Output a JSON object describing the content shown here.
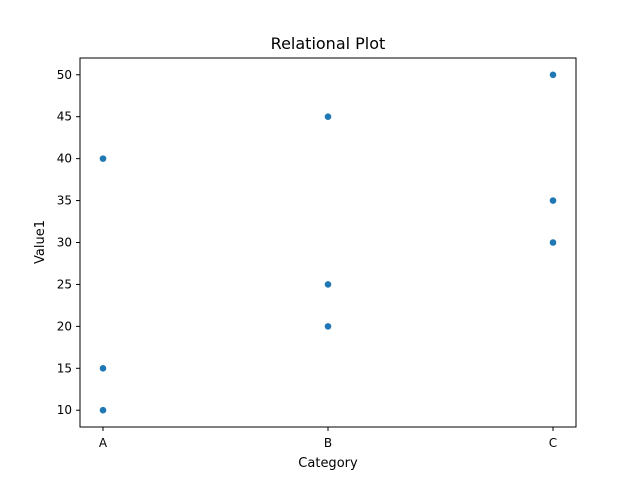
{
  "chart_data": {
    "type": "scatter",
    "title": "Relational Plot",
    "xlabel": "Category",
    "ylabel": "Value1",
    "categories": [
      "A",
      "B",
      "C"
    ],
    "x": [
      "A",
      "A",
      "A",
      "B",
      "B",
      "B",
      "C",
      "C",
      "C"
    ],
    "y": [
      10,
      15,
      40,
      20,
      25,
      45,
      30,
      35,
      50
    ],
    "ylim": [
      8,
      52
    ],
    "yticks": [
      10,
      15,
      20,
      25,
      30,
      35,
      40,
      45,
      50
    ],
    "grid": false,
    "color": "#1f77b4"
  }
}
